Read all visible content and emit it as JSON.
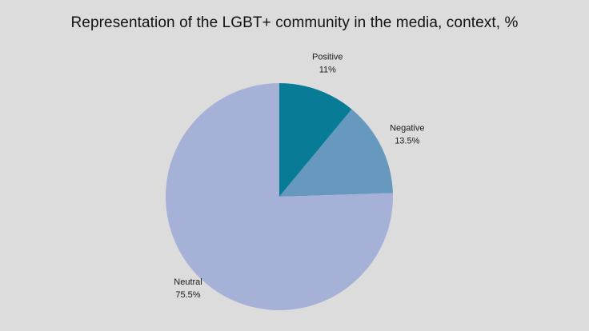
{
  "chart_data": {
    "type": "pie",
    "title": "Representation of the LGBT+ community in the media, context, %",
    "start_angle_deg": 0,
    "direction": "clockwise",
    "slices": [
      {
        "label": "Positive",
        "value": 11,
        "display": "11%",
        "color": "#087c96"
      },
      {
        "label": "Negative",
        "value": 13.5,
        "display": "13.5%",
        "color": "#6699bd"
      },
      {
        "label": "Neutral",
        "value": 75.5,
        "display": "75.5%",
        "color": "#a6b1d7"
      }
    ]
  }
}
